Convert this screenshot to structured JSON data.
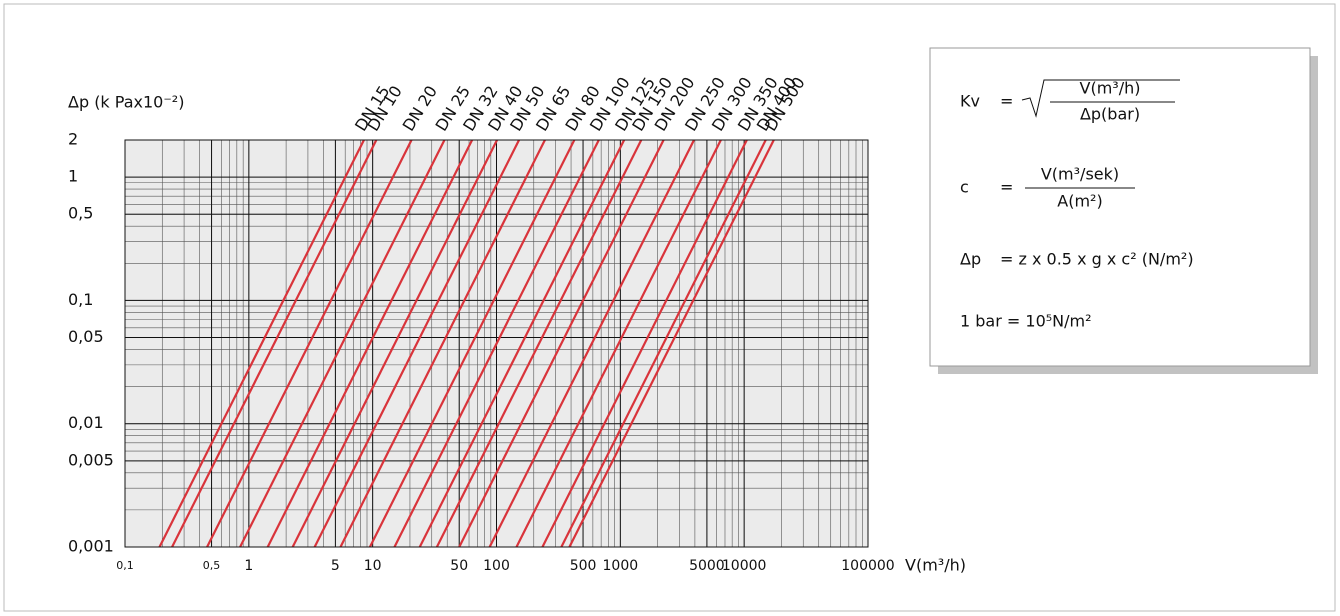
{
  "chart_data": {
    "type": "line",
    "log_x": true,
    "log_y": true,
    "grid": true,
    "y_label": "Δp (k Pax10⁻²)",
    "x_label": "V(m³/h)",
    "xlim": [
      0.1,
      100000
    ],
    "ylim": [
      0.001,
      2
    ],
    "xticks": [
      {
        "value": 0.1,
        "label": "0,1"
      },
      {
        "value": 0.5,
        "label": "0,5"
      },
      1,
      5,
      10,
      50,
      100,
      500,
      1000,
      5000,
      10000,
      100000
    ],
    "yticks": [
      2,
      1,
      {
        "value": 0.5,
        "label": "0,5"
      },
      {
        "value": 0.1,
        "label": "0,1"
      },
      {
        "value": 0.05,
        "label": "0,05"
      },
      {
        "value": 0.01,
        "label": "0,01"
      },
      {
        "value": 0.005,
        "label": "0,005"
      },
      {
        "value": 0.001,
        "label": "0,001"
      }
    ],
    "series": [
      {
        "name": "DN 15",
        "color": "#d9343b",
        "x": [
          0.19,
          8.5
        ],
        "values": [
          0.001,
          2
        ]
      },
      {
        "name": "DN 10",
        "color": "#d9343b",
        "x": [
          0.24,
          10.7
        ],
        "values": [
          0.001,
          2
        ]
      },
      {
        "name": "DN 20",
        "color": "#d9343b",
        "x": [
          0.46,
          20.6
        ],
        "values": [
          0.001,
          2
        ]
      },
      {
        "name": "DN 25",
        "color": "#d9343b",
        "x": [
          0.85,
          38
        ],
        "values": [
          0.001,
          2
        ]
      },
      {
        "name": "DN 32",
        "color": "#d9343b",
        "x": [
          1.42,
          63.5
        ],
        "values": [
          0.001,
          2
        ]
      },
      {
        "name": "DN 40",
        "color": "#d9343b",
        "x": [
          2.26,
          101
        ],
        "values": [
          0.001,
          2
        ]
      },
      {
        "name": "DN 50",
        "color": "#d9343b",
        "x": [
          3.4,
          152
        ],
        "values": [
          0.001,
          2
        ]
      },
      {
        "name": "DN 65",
        "color": "#d9343b",
        "x": [
          5.5,
          246
        ],
        "values": [
          0.001,
          2
        ]
      },
      {
        "name": "DN 80",
        "color": "#d9343b",
        "x": [
          9.5,
          425
        ],
        "values": [
          0.001,
          2
        ]
      },
      {
        "name": "DN 100",
        "color": "#d9343b",
        "x": [
          15,
          670
        ],
        "values": [
          0.001,
          2
        ]
      },
      {
        "name": "DN 125",
        "color": "#d9343b",
        "x": [
          24,
          1073
        ],
        "values": [
          0.001,
          2
        ]
      },
      {
        "name": "DN 150",
        "color": "#d9343b",
        "x": [
          33,
          1475
        ],
        "values": [
          0.001,
          2
        ]
      },
      {
        "name": "DN 200",
        "color": "#d9343b",
        "x": [
          50,
          2235
        ],
        "values": [
          0.001,
          2
        ]
      },
      {
        "name": "DN 250",
        "color": "#d9343b",
        "x": [
          88,
          3934
        ],
        "values": [
          0.001,
          2
        ]
      },
      {
        "name": "DN 300",
        "color": "#d9343b",
        "x": [
          145,
          6480
        ],
        "values": [
          0.001,
          2
        ]
      },
      {
        "name": "DN 350",
        "color": "#d9343b",
        "x": [
          235,
          10500
        ],
        "values": [
          0.001,
          2
        ]
      },
      {
        "name": "DN 400",
        "color": "#d9343b",
        "x": [
          334,
          14930
        ],
        "values": [
          0.001,
          2
        ]
      },
      {
        "name": "DN 500",
        "color": "#d9343b",
        "x": [
          388,
          17340
        ],
        "values": [
          0.001,
          2
        ]
      }
    ]
  },
  "formulas": {
    "kv": {
      "symbol": "Kv",
      "eq": "=",
      "numerator": "V(m³/h)",
      "denominator": "Δp(bar)"
    },
    "c": {
      "symbol": "c",
      "eq": "=",
      "numerator": "V(m³/sek)",
      "denominator": "A(m²)"
    },
    "dp": {
      "symbol": "Δp",
      "expression": "=  z x 0.5 x g x c² (N/m²)"
    },
    "bar": "1 bar =  10⁵N/m²"
  }
}
